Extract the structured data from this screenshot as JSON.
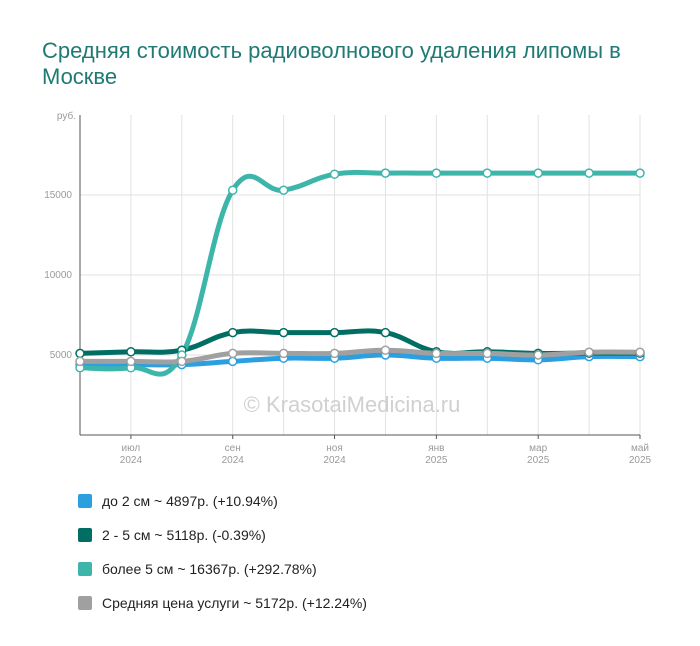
{
  "title": "Средняя стоимость радиоволнового удаления липомы в Москве",
  "watermark": "© KrasotaiMedicina.ru",
  "chart_data": {
    "type": "line",
    "ylabel": "руб.",
    "ylim": [
      0,
      20000
    ],
    "yticks": [
      5000,
      10000,
      15000
    ],
    "x": [
      "2024-06",
      "2024-07",
      "2024-08",
      "2024-09",
      "2024-10",
      "2024-11",
      "2024-12",
      "2025-01",
      "2025-02",
      "2025-03",
      "2025-04",
      "2025-05"
    ],
    "xtick_labels": [
      {
        "index": 1,
        "month": "июл",
        "year": "2024"
      },
      {
        "index": 3,
        "month": "сен",
        "year": "2024"
      },
      {
        "index": 5,
        "month": "ноя",
        "year": "2024"
      },
      {
        "index": 7,
        "month": "янв",
        "year": "2025"
      },
      {
        "index": 9,
        "month": "мар",
        "year": "2025"
      },
      {
        "index": 11,
        "month": "май",
        "year": "2025"
      }
    ],
    "grid": true,
    "series": [
      {
        "name": "до 2 см",
        "color": "#2b9fe0",
        "values": [
          4400,
          4400,
          4400,
          4600,
          4800,
          4800,
          5000,
          4800,
          4800,
          4700,
          4900,
          4897
        ],
        "legend": "до 2 см ~ 4897р. (+10.94%)"
      },
      {
        "name": "2 - 5 см",
        "color": "#006e63",
        "values": [
          5100,
          5200,
          5300,
          6400,
          6400,
          6400,
          6400,
          5200,
          5200,
          5100,
          5118,
          5118
        ],
        "legend": "2 - 5 см ~ 5118р. (-0.39%)"
      },
      {
        "name": "более 5 см",
        "color": "#3eb5ab",
        "values": [
          4200,
          4200,
          5000,
          15300,
          15300,
          16300,
          16367,
          16367,
          16367,
          16367,
          16367,
          16367
        ],
        "legend": "более 5 см ~ 16367р. (+292.78%)"
      },
      {
        "name": "Средняя цена услуги",
        "color": "#a0a0a0",
        "values": [
          4600,
          4600,
          4600,
          5100,
          5100,
          5100,
          5300,
          5100,
          5100,
          5000,
          5172,
          5172
        ],
        "legend": "Средняя цена услуги ~ 5172р. (+12.24%)"
      }
    ]
  }
}
